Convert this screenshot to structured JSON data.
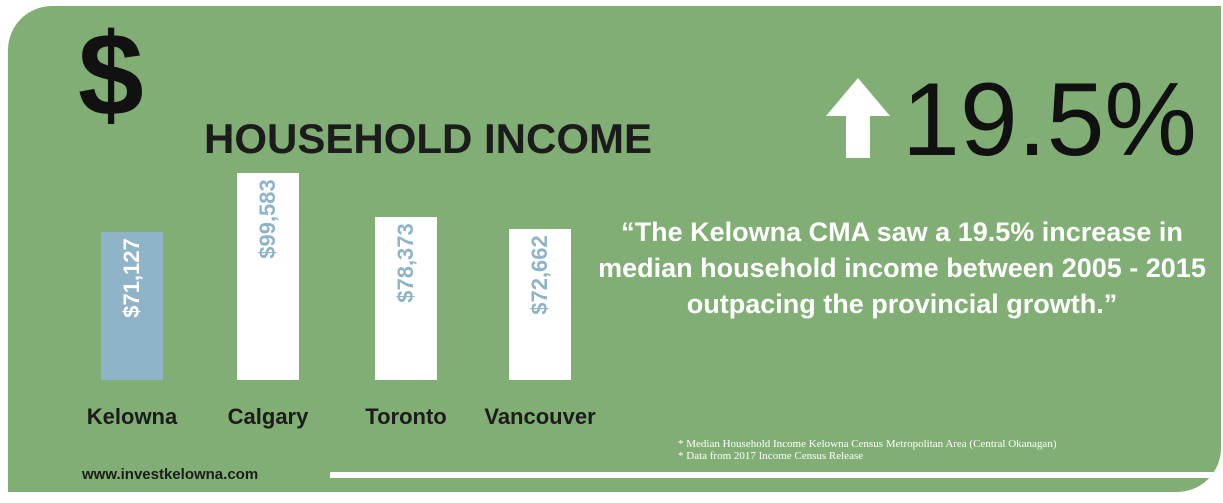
{
  "header": {
    "dollar_symbol": "$",
    "headline": "HOUSEHOLD INCOME",
    "growth_value": "19.5%",
    "arrow_icon": "up-arrow-icon"
  },
  "chart_data": {
    "type": "bar",
    "categories": [
      "Kelowna",
      "Calgary",
      "Toronto",
      "Vancouver"
    ],
    "values": [
      71127,
      99583,
      78373,
      72662
    ],
    "value_labels": [
      "$71,127",
      "$99,583",
      "$78,373",
      "$72,662"
    ],
    "highlight_category": "Kelowna",
    "title": "",
    "xlabel": "",
    "ylabel": "",
    "grid": false
  },
  "quote": {
    "text": "“The Kelowna CMA saw a 19.5% increase in median household income between 2005 - 2015 outpacing the provincial  growth.”"
  },
  "footnotes": [
    "*  Median Household Income Kelowna Census Metropolitan Area (Central Okanagan)",
    "*  Data from 2017 Income Census Release"
  ],
  "footer": {
    "website": "www.investkelowna.com"
  },
  "colors": {
    "background": "#80ae74",
    "highlight_bar": "#8fb3c7",
    "bar": "#ffffff",
    "text_dark": "#1c1c1c"
  }
}
